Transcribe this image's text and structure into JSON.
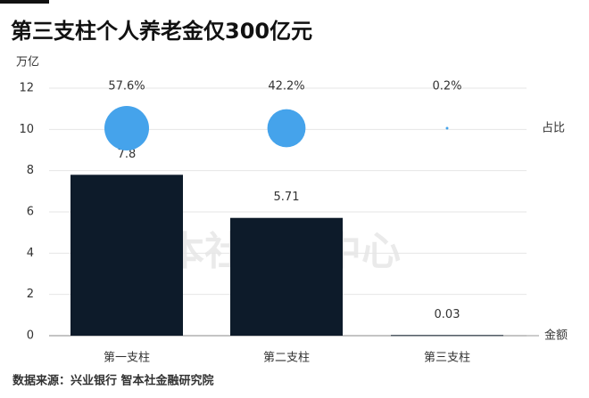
{
  "chart_data": {
    "type": "bar",
    "title": "第三支柱个人养老金仅300亿元",
    "y_label": "万亿",
    "watermark": "智本社数据中心",
    "source": "数据来源：兴业银行 智本社金融研究院",
    "categories": [
      "第一支柱",
      "第二支柱",
      "第三支柱"
    ],
    "series": [
      {
        "name": "金额",
        "color": "#0d1b2a",
        "values": [
          7.8,
          5.71,
          0.03
        ]
      },
      {
        "name": "占比",
        "color": "#45a3eb",
        "values": [
          57.6,
          42.2,
          0.2
        ],
        "value_labels": [
          "57.6%",
          "42.2%",
          "0.2%"
        ]
      }
    ],
    "ylim": [
      0,
      12
    ],
    "yticks": [
      0,
      2,
      4,
      6,
      8,
      10,
      12
    ],
    "grid": true
  }
}
